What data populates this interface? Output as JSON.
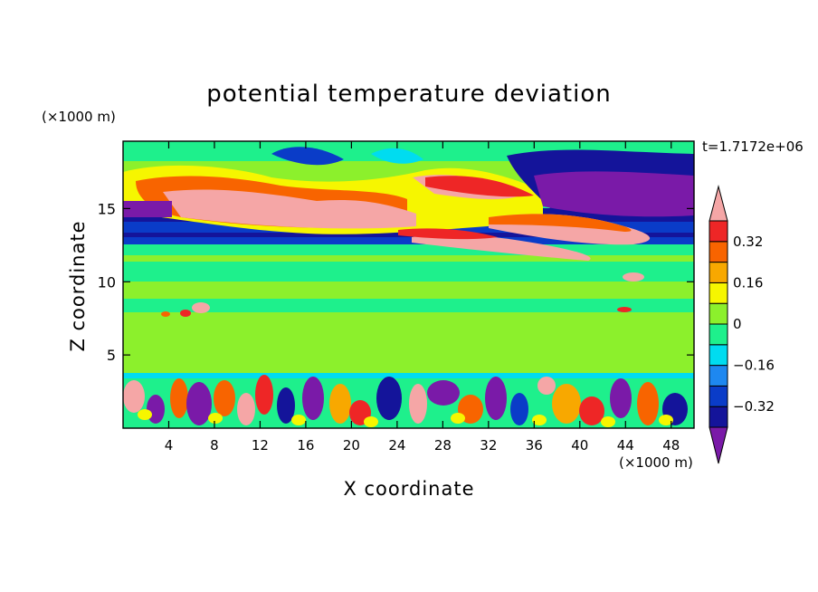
{
  "chart_data": {
    "type": "heatmap",
    "title": "potential temperature deviation",
    "xlabel": "X coordinate",
    "ylabel": "Z coordinate",
    "x_unit": "(×1000 m)",
    "y_unit": "(×1000 m)",
    "time_label": "t=1.7172e+06",
    "x_ticks": [
      4,
      8,
      12,
      16,
      20,
      24,
      28,
      32,
      36,
      40,
      44,
      48
    ],
    "y_ticks": [
      5,
      10,
      15
    ],
    "xlim": [
      0,
      50
    ],
    "ylim": [
      0,
      19.6
    ],
    "colorbar": {
      "labels": [
        0.32,
        0.16,
        0,
        -0.16,
        -0.32
      ],
      "label_text": [
        "0.32",
        "0.16",
        "0",
        "−0.16",
        "−0.32"
      ],
      "levels": [
        -0.48,
        -0.4,
        -0.32,
        -0.24,
        -0.16,
        -0.08,
        0,
        0.08,
        0.16,
        0.24,
        0.32,
        0.4,
        0.48
      ],
      "colors": [
        "#7a1aa8",
        "#14149a",
        "#0a3cc8",
        "#1e88f0",
        "#00dcf0",
        "#1ef08c",
        "#8cf02c",
        "#f6f600",
        "#f8a800",
        "#f86400",
        "#ee2626",
        "#f5a6a6"
      ],
      "extend": "both"
    },
    "grid": false,
    "legend_position": "right"
  }
}
